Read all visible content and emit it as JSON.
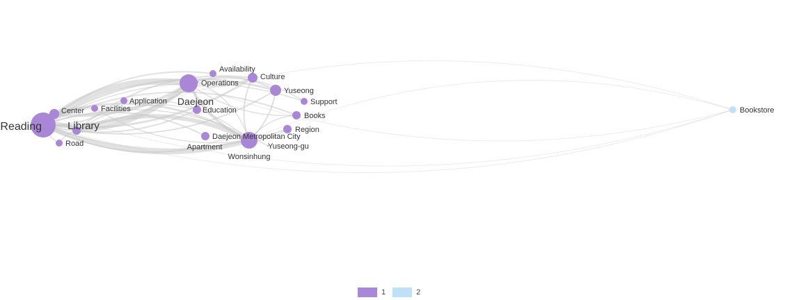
{
  "colors": {
    "group_1": "#a986d6",
    "group_2": "#bfe1f5",
    "edge": "#c8c8c8",
    "label": "#333333"
  },
  "nodes": [
    {
      "id": "reading",
      "label": "Reading",
      "group": 1,
      "weight": 5
    },
    {
      "id": "library",
      "label": "Library",
      "group": 1,
      "weight": 2
    },
    {
      "id": "center",
      "label": "Center",
      "group": 1,
      "weight": 2
    },
    {
      "id": "road",
      "label": "Road",
      "group": 1,
      "weight": 1
    },
    {
      "id": "facilities",
      "label": "Facilities",
      "group": 1,
      "weight": 1
    },
    {
      "id": "application",
      "label": "Application",
      "group": 1,
      "weight": 1
    },
    {
      "id": "daejeon",
      "label": "Daejeon",
      "group": 1,
      "weight": 4
    },
    {
      "id": "availability",
      "label": "Availability",
      "group": 1,
      "weight": 1
    },
    {
      "id": "operations",
      "label": "Operations",
      "group": 1,
      "weight": 1
    },
    {
      "id": "culture",
      "label": "Culture",
      "group": 1,
      "weight": 2
    },
    {
      "id": "yuseong",
      "label": "Yuseong",
      "group": 1,
      "weight": 2
    },
    {
      "id": "support",
      "label": "Support",
      "group": 1,
      "weight": 1
    },
    {
      "id": "education",
      "label": "Education",
      "group": 1,
      "weight": 1
    },
    {
      "id": "books",
      "label": "Books",
      "group": 1,
      "weight": 1
    },
    {
      "id": "region",
      "label": "Region",
      "group": 1,
      "weight": 1
    },
    {
      "id": "metro",
      "label": "Daejeon Metropolitan City",
      "group": 1,
      "weight": 1
    },
    {
      "id": "apartment",
      "label": "Apartment",
      "group": 1,
      "weight": 1
    },
    {
      "id": "wonsinhung",
      "label": "Wonsinhung",
      "group": 1,
      "weight": 4
    },
    {
      "id": "yuseonggu",
      "label": "Yuseong-gu",
      "group": 1,
      "weight": 1
    },
    {
      "id": "bookstore",
      "label": "Bookstore",
      "group": 2,
      "weight": 1
    }
  ],
  "edges": [
    [
      "reading",
      "daejeon",
      9
    ],
    [
      "reading",
      "wonsinhung",
      7
    ],
    [
      "reading",
      "library",
      5
    ],
    [
      "library",
      "daejeon",
      7
    ],
    [
      "library",
      "wonsinhung",
      6
    ],
    [
      "center",
      "daejeon",
      4
    ],
    [
      "center",
      "wonsinhung",
      3
    ],
    [
      "reading",
      "culture",
      3
    ],
    [
      "reading",
      "yuseong",
      3
    ],
    [
      "reading",
      "operations",
      3
    ],
    [
      "reading",
      "availability",
      2
    ],
    [
      "reading",
      "application",
      2
    ],
    [
      "reading",
      "facilities",
      2
    ],
    [
      "reading",
      "education",
      2
    ],
    [
      "reading",
      "books",
      2
    ],
    [
      "reading",
      "region",
      2
    ],
    [
      "reading",
      "support",
      1.5
    ],
    [
      "reading",
      "apartment",
      2
    ],
    [
      "reading",
      "metro",
      2
    ],
    [
      "reading",
      "road",
      1.5
    ],
    [
      "reading",
      "yuseonggu",
      1.5
    ],
    [
      "daejeon",
      "wonsinhung",
      4
    ],
    [
      "daejeon",
      "yuseong",
      2
    ],
    [
      "daejeon",
      "culture",
      2
    ],
    [
      "daejeon",
      "education",
      2
    ],
    [
      "daejeon",
      "books",
      1.5
    ],
    [
      "daejeon",
      "support",
      1.5
    ],
    [
      "wonsinhung",
      "yuseong",
      2
    ],
    [
      "wonsinhung",
      "culture",
      2
    ],
    [
      "wonsinhung",
      "region",
      1.5
    ],
    [
      "wonsinhung",
      "books",
      1.5
    ],
    [
      "wonsinhung",
      "apartment",
      1.5
    ],
    [
      "library",
      "culture",
      2
    ],
    [
      "library",
      "yuseong",
      2
    ],
    [
      "library",
      "education",
      1.5
    ],
    [
      "library",
      "road",
      1.5
    ],
    [
      "application",
      "wonsinhung",
      1.5
    ],
    [
      "facilities",
      "wonsinhung",
      1.5
    ],
    [
      "operations",
      "wonsinhung",
      1.5
    ],
    [
      "reading",
      "bookstore",
      1
    ],
    [
      "library",
      "bookstore",
      1
    ],
    [
      "daejeon",
      "bookstore",
      1
    ],
    [
      "wonsinhung",
      "bookstore",
      1
    ],
    [
      "center",
      "bookstore",
      1
    ]
  ],
  "legend": [
    {
      "label": "1",
      "color_key": "group_1"
    },
    {
      "label": "2",
      "color_key": "group_2"
    }
  ]
}
